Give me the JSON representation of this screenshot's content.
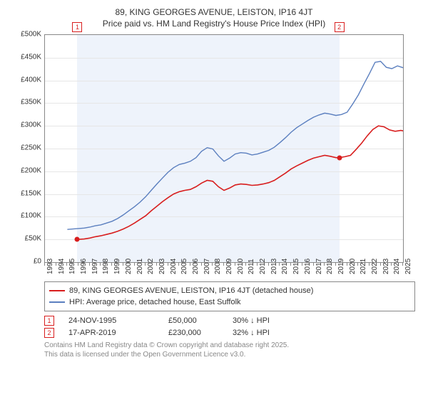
{
  "title_line1": "89, KING GEORGES AVENUE, LEISTON, IP16 4JT",
  "title_line2": "Price paid vs. HM Land Registry's House Price Index (HPI)",
  "chart": {
    "type": "line",
    "background_color": "#ffffff",
    "shade_color": "#eef3fb",
    "border_color": "#888888",
    "grid_color": "#e6e6e6",
    "x_years": [
      1993,
      1994,
      1995,
      1996,
      1997,
      1998,
      1999,
      2000,
      2001,
      2002,
      2003,
      2004,
      2005,
      2006,
      2007,
      2008,
      2009,
      2010,
      2011,
      2012,
      2013,
      2014,
      2015,
      2016,
      2017,
      2018,
      2019,
      2020,
      2021,
      2022,
      2023,
      2024,
      2025
    ],
    "xlim": [
      1993,
      2025
    ],
    "ylim": [
      0,
      500000
    ],
    "ytick_step": 50000,
    "ytick_labels": [
      "£0",
      "£50K",
      "£100K",
      "£150K",
      "£200K",
      "£250K",
      "£300K",
      "£350K",
      "£400K",
      "£450K",
      "£500K"
    ],
    "shade_start_year": 1995.9,
    "shade_end_year": 2019.3,
    "series": {
      "property": {
        "label": "89, KING GEORGES AVENUE, LEISTON, IP16 4JT (detached house)",
        "color": "#d81e1e",
        "line_width": 1.6,
        "points": [
          [
            1995.9,
            50000
          ],
          [
            1996.5,
            51000
          ],
          [
            1997,
            53000
          ],
          [
            1997.5,
            56000
          ],
          [
            1998,
            58000
          ],
          [
            1998.5,
            61000
          ],
          [
            1999,
            64000
          ],
          [
            1999.5,
            68000
          ],
          [
            2000,
            73000
          ],
          [
            2000.5,
            79000
          ],
          [
            2001,
            86000
          ],
          [
            2001.5,
            94000
          ],
          [
            2002,
            102000
          ],
          [
            2002.5,
            113000
          ],
          [
            2003,
            123000
          ],
          [
            2003.5,
            133000
          ],
          [
            2004,
            142000
          ],
          [
            2004.5,
            150000
          ],
          [
            2005,
            155000
          ],
          [
            2005.5,
            158000
          ],
          [
            2006,
            160000
          ],
          [
            2006.5,
            166000
          ],
          [
            2007,
            174000
          ],
          [
            2007.5,
            180000
          ],
          [
            2008,
            178000
          ],
          [
            2008.5,
            166000
          ],
          [
            2009,
            158000
          ],
          [
            2009.5,
            163000
          ],
          [
            2010,
            170000
          ],
          [
            2010.5,
            172000
          ],
          [
            2011,
            171000
          ],
          [
            2011.5,
            169000
          ],
          [
            2012,
            170000
          ],
          [
            2012.5,
            172000
          ],
          [
            2013,
            175000
          ],
          [
            2013.5,
            180000
          ],
          [
            2014,
            188000
          ],
          [
            2014.5,
            196000
          ],
          [
            2015,
            205000
          ],
          [
            2015.5,
            212000
          ],
          [
            2016,
            218000
          ],
          [
            2016.5,
            224000
          ],
          [
            2017,
            229000
          ],
          [
            2017.5,
            232000
          ],
          [
            2018,
            235000
          ],
          [
            2018.5,
            233000
          ],
          [
            2019,
            230000
          ],
          [
            2019.3,
            230000
          ],
          [
            2019.8,
            232000
          ],
          [
            2020.3,
            235000
          ],
          [
            2020.8,
            248000
          ],
          [
            2021.3,
            262000
          ],
          [
            2021.8,
            278000
          ],
          [
            2022.3,
            292000
          ],
          [
            2022.8,
            300000
          ],
          [
            2023.3,
            298000
          ],
          [
            2023.8,
            291000
          ],
          [
            2024.3,
            288000
          ],
          [
            2024.8,
            290000
          ],
          [
            2025,
            289000
          ]
        ]
      },
      "hpi": {
        "label": "HPI: Average price, detached house, East Suffolk",
        "color": "#5b7fbf",
        "line_width": 1.4,
        "points": [
          [
            1995,
            72000
          ],
          [
            1995.5,
            73000
          ],
          [
            1996,
            74000
          ],
          [
            1996.5,
            75000
          ],
          [
            1997,
            77000
          ],
          [
            1997.5,
            80000
          ],
          [
            1998,
            82000
          ],
          [
            1998.5,
            86000
          ],
          [
            1999,
            90000
          ],
          [
            1999.5,
            96000
          ],
          [
            2000,
            104000
          ],
          [
            2000.5,
            113000
          ],
          [
            2001,
            122000
          ],
          [
            2001.5,
            132000
          ],
          [
            2002,
            144000
          ],
          [
            2002.5,
            158000
          ],
          [
            2003,
            172000
          ],
          [
            2003.5,
            185000
          ],
          [
            2004,
            198000
          ],
          [
            2004.5,
            208000
          ],
          [
            2005,
            215000
          ],
          [
            2005.5,
            218000
          ],
          [
            2006,
            222000
          ],
          [
            2006.5,
            230000
          ],
          [
            2007,
            244000
          ],
          [
            2007.5,
            252000
          ],
          [
            2008,
            249000
          ],
          [
            2008.5,
            234000
          ],
          [
            2009,
            222000
          ],
          [
            2009.5,
            229000
          ],
          [
            2010,
            238000
          ],
          [
            2010.5,
            241000
          ],
          [
            2011,
            240000
          ],
          [
            2011.5,
            236000
          ],
          [
            2012,
            238000
          ],
          [
            2012.5,
            242000
          ],
          [
            2013,
            246000
          ],
          [
            2013.5,
            253000
          ],
          [
            2014,
            263000
          ],
          [
            2014.5,
            274000
          ],
          [
            2015,
            286000
          ],
          [
            2015.5,
            296000
          ],
          [
            2016,
            304000
          ],
          [
            2016.5,
            312000
          ],
          [
            2017,
            319000
          ],
          [
            2017.5,
            324000
          ],
          [
            2018,
            328000
          ],
          [
            2018.5,
            326000
          ],
          [
            2019,
            323000
          ],
          [
            2019.5,
            325000
          ],
          [
            2020,
            330000
          ],
          [
            2020.5,
            348000
          ],
          [
            2021,
            368000
          ],
          [
            2021.5,
            392000
          ],
          [
            2022,
            415000
          ],
          [
            2022.5,
            440000
          ],
          [
            2023,
            442000
          ],
          [
            2023.5,
            429000
          ],
          [
            2024,
            426000
          ],
          [
            2024.5,
            432000
          ],
          [
            2025,
            428000
          ]
        ]
      }
    },
    "markers": [
      {
        "n": "1",
        "year": 1995.9,
        "value": 50000,
        "color": "#d81e1e"
      },
      {
        "n": "2",
        "year": 2019.3,
        "value": 230000,
        "color": "#d81e1e"
      }
    ]
  },
  "legend": [
    {
      "color": "#d81e1e",
      "text": "89, KING GEORGES AVENUE, LEISTON, IP16 4JT (detached house)"
    },
    {
      "color": "#5b7fbf",
      "text": "HPI: Average price, detached house, East Suffolk"
    }
  ],
  "annotations": [
    {
      "n": "1",
      "color": "#d81e1e",
      "date": "24-NOV-1995",
      "price": "£50,000",
      "hpi": "30% ↓ HPI"
    },
    {
      "n": "2",
      "color": "#d81e1e",
      "date": "17-APR-2019",
      "price": "£230,000",
      "hpi": "32% ↓ HPI"
    }
  ],
  "footer": {
    "line1": "Contains HM Land Registry data © Crown copyright and database right 2025.",
    "line2": "This data is licensed under the Open Government Licence v3.0."
  }
}
